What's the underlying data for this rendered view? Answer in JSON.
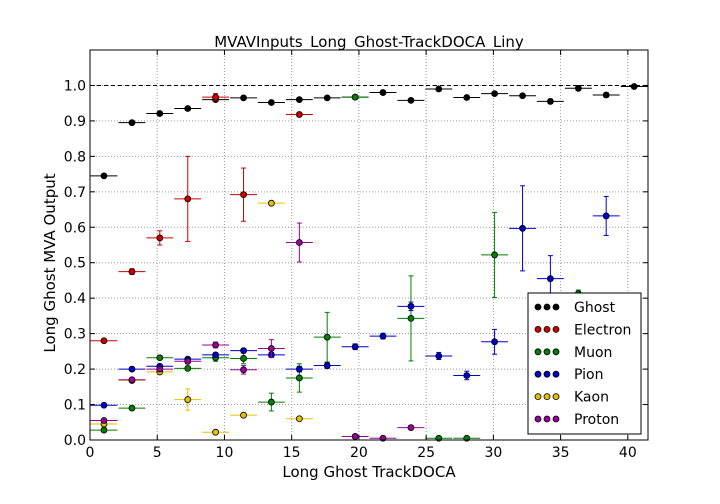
{
  "chart_data": {
    "type": "scatter",
    "title": "MVAVInputs_Long_Ghost-TrackDOCA_Liny",
    "xlabel": "Long Ghost TrackDOCA",
    "ylabel": "Long Ghost MVA Output",
    "xlim": [
      0,
      41.5
    ],
    "ylim": [
      0,
      1.1
    ],
    "xticks": [
      0,
      5,
      10,
      15,
      20,
      25,
      30,
      35,
      40
    ],
    "yticks": [
      0.0,
      0.1,
      0.2,
      0.3,
      0.4,
      0.5,
      0.6,
      0.7,
      0.8,
      0.9,
      1.0
    ],
    "ytick_labels": [
      "0.0",
      "0.1",
      "0.2",
      "0.3",
      "0.4",
      "0.5",
      "0.6",
      "0.7",
      "0.8",
      "0.9",
      "1.0"
    ],
    "xtick_labels": [
      "0",
      "5",
      "10",
      "15",
      "20",
      "25",
      "30",
      "35",
      "40"
    ],
    "reference_line_y": 1.0,
    "grid": true,
    "legend_position": "bottom-right",
    "x_bin_half_width": 1.0,
    "series": [
      {
        "name": "Ghost",
        "color": "#000000",
        "points": [
          {
            "x": 1.04,
            "y": 0.745,
            "err": 0.004
          },
          {
            "x": 3.12,
            "y": 0.895,
            "err": 0.003
          },
          {
            "x": 5.19,
            "y": 0.921,
            "err": 0.003
          },
          {
            "x": 7.27,
            "y": 0.935,
            "err": 0.003
          },
          {
            "x": 9.34,
            "y": 0.96,
            "err": 0.004
          },
          {
            "x": 11.42,
            "y": 0.965,
            "err": 0.004
          },
          {
            "x": 13.49,
            "y": 0.952,
            "err": 0.004
          },
          {
            "x": 15.57,
            "y": 0.96,
            "err": 0.004
          },
          {
            "x": 17.64,
            "y": 0.965,
            "err": 0.004
          },
          {
            "x": 19.72,
            "y": 0.967,
            "err": 0.004
          },
          {
            "x": 21.79,
            "y": 0.98,
            "err": 0.004
          },
          {
            "x": 23.87,
            "y": 0.958,
            "err": 0.005
          },
          {
            "x": 25.94,
            "y": 0.99,
            "err": 0.005
          },
          {
            "x": 28.02,
            "y": 0.966,
            "err": 0.005
          },
          {
            "x": 30.09,
            "y": 0.977,
            "err": 0.005
          },
          {
            "x": 32.17,
            "y": 0.971,
            "err": 0.005
          },
          {
            "x": 34.24,
            "y": 0.955,
            "err": 0.006
          },
          {
            "x": 36.32,
            "y": 0.992,
            "err": 0.005
          },
          {
            "x": 38.39,
            "y": 0.973,
            "err": 0.006
          },
          {
            "x": 40.47,
            "y": 0.997,
            "err": 0.004
          }
        ]
      },
      {
        "name": "Electron",
        "color": "#cc0000",
        "points": [
          {
            "x": 1.04,
            "y": 0.28,
            "err": 0.005
          },
          {
            "x": 3.12,
            "y": 0.475,
            "err": 0.008
          },
          {
            "x": 5.19,
            "y": 0.57,
            "err": 0.02
          },
          {
            "x": 7.27,
            "y": 0.68,
            "err": 0.12
          },
          {
            "x": 9.34,
            "y": 0.967,
            "err": 0.01
          },
          {
            "x": 11.42,
            "y": 0.692,
            "err": 0.075
          },
          {
            "x": 15.57,
            "y": 0.918,
            "err": 0.006
          }
        ]
      },
      {
        "name": "Muon",
        "color": "#007f00",
        "points": [
          {
            "x": 1.04,
            "y": 0.028,
            "err": 0.004
          },
          {
            "x": 3.12,
            "y": 0.09,
            "err": 0.005
          },
          {
            "x": 5.19,
            "y": 0.232,
            "err": 0.005
          },
          {
            "x": 7.27,
            "y": 0.202,
            "err": 0.006
          },
          {
            "x": 9.34,
            "y": 0.232,
            "err": 0.01
          },
          {
            "x": 11.42,
            "y": 0.23,
            "err": 0.015
          },
          {
            "x": 13.49,
            "y": 0.107,
            "err": 0.025
          },
          {
            "x": 15.57,
            "y": 0.175,
            "err": 0.04
          },
          {
            "x": 17.64,
            "y": 0.29,
            "err": 0.07
          },
          {
            "x": 19.72,
            "y": 0.967,
            "err": 0.004
          },
          {
            "x": 23.87,
            "y": 0.343,
            "err": 0.12
          },
          {
            "x": 25.94,
            "y": 0.005,
            "err": 0.003
          },
          {
            "x": 28.02,
            "y": 0.005,
            "err": 0.003
          },
          {
            "x": 30.09,
            "y": 0.522,
            "err": 0.12
          },
          {
            "x": 36.32,
            "y": 0.413,
            "err": 0.01
          }
        ]
      },
      {
        "name": "Pion",
        "color": "#0000cc",
        "points": [
          {
            "x": 1.04,
            "y": 0.098,
            "err": 0.004
          },
          {
            "x": 3.12,
            "y": 0.2,
            "err": 0.004
          },
          {
            "x": 5.19,
            "y": 0.208,
            "err": 0.005
          },
          {
            "x": 7.27,
            "y": 0.228,
            "err": 0.005
          },
          {
            "x": 9.34,
            "y": 0.24,
            "err": 0.006
          },
          {
            "x": 11.42,
            "y": 0.252,
            "err": 0.006
          },
          {
            "x": 13.49,
            "y": 0.24,
            "err": 0.007
          },
          {
            "x": 15.57,
            "y": 0.2,
            "err": 0.008
          },
          {
            "x": 17.64,
            "y": 0.21,
            "err": 0.008
          },
          {
            "x": 19.72,
            "y": 0.263,
            "err": 0.008
          },
          {
            "x": 21.79,
            "y": 0.293,
            "err": 0.008
          },
          {
            "x": 23.87,
            "y": 0.377,
            "err": 0.012
          },
          {
            "x": 25.94,
            "y": 0.237,
            "err": 0.01
          },
          {
            "x": 28.02,
            "y": 0.182,
            "err": 0.012
          },
          {
            "x": 30.09,
            "y": 0.277,
            "err": 0.035
          },
          {
            "x": 32.17,
            "y": 0.597,
            "err": 0.12
          },
          {
            "x": 34.24,
            "y": 0.455,
            "err": 0.065
          },
          {
            "x": 38.39,
            "y": 0.632,
            "err": 0.055
          }
        ]
      },
      {
        "name": "Kaon",
        "color": "#e6c000",
        "points": [
          {
            "x": 1.04,
            "y": 0.045,
            "err": 0.004
          },
          {
            "x": 3.12,
            "y": 0.168,
            "err": 0.005
          },
          {
            "x": 5.19,
            "y": 0.192,
            "err": 0.006
          },
          {
            "x": 7.27,
            "y": 0.114,
            "err": 0.03
          },
          {
            "x": 9.34,
            "y": 0.022,
            "err": 0.004
          },
          {
            "x": 11.42,
            "y": 0.07,
            "err": 0.005
          },
          {
            "x": 13.49,
            "y": 0.668,
            "err": 0.005
          },
          {
            "x": 15.57,
            "y": 0.06,
            "err": 0.005
          }
        ]
      },
      {
        "name": "Proton",
        "color": "#990099",
        "points": [
          {
            "x": 1.04,
            "y": 0.055,
            "err": 0.004
          },
          {
            "x": 3.12,
            "y": 0.17,
            "err": 0.005
          },
          {
            "x": 5.19,
            "y": 0.2,
            "err": 0.006
          },
          {
            "x": 7.27,
            "y": 0.222,
            "err": 0.007
          },
          {
            "x": 9.34,
            "y": 0.268,
            "err": 0.008
          },
          {
            "x": 11.42,
            "y": 0.198,
            "err": 0.012
          },
          {
            "x": 13.49,
            "y": 0.258,
            "err": 0.025
          },
          {
            "x": 15.57,
            "y": 0.557,
            "err": 0.055
          },
          {
            "x": 19.72,
            "y": 0.01,
            "err": 0.003
          },
          {
            "x": 21.79,
            "y": 0.005,
            "err": 0.003
          },
          {
            "x": 23.87,
            "y": 0.035,
            "err": 0.004
          }
        ]
      }
    ]
  }
}
